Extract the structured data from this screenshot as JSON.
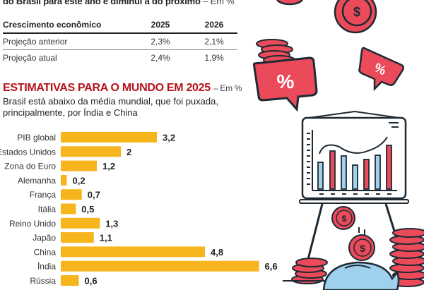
{
  "header": {
    "subtitle": "do Brasil para este ano e diminui a do próximo",
    "subtitle_unit": "– Em %"
  },
  "table": {
    "headers": [
      "Crescimento econômico",
      "2025",
      "2026"
    ],
    "rows": [
      [
        "Projeção anterior",
        "2,3%",
        "2,1%"
      ],
      [
        "Projeção atual",
        "2,4%",
        "1,9%"
      ]
    ]
  },
  "section": {
    "title": "ESTIMATIVAS PARA O MUNDO EM 2025",
    "unit": "– Em %",
    "description": "Brasil está abaixo da média mundial, que foi puxada, principalmente, por Índia e China"
  },
  "chart_data": {
    "type": "bar",
    "orientation": "horizontal",
    "title": "ESTIMATIVAS PARA O MUNDO EM 2025",
    "unit": "%",
    "categories": [
      "PIB global",
      "Estados Unidos",
      "Zona do Euro",
      "Alemanha",
      "França",
      "Itália",
      "Reino Unido",
      "Japão",
      "China",
      "Índia",
      "Rússia"
    ],
    "values": [
      3.2,
      2,
      1.2,
      0.2,
      0.7,
      0.5,
      1.3,
      1.1,
      4.8,
      6.6,
      0.6
    ],
    "value_labels": [
      "3,2",
      "2",
      "1,2",
      "0,2",
      "0,7",
      "0,5",
      "1,3",
      "1,1",
      "4,8",
      "6,6",
      "0,6"
    ],
    "bar_color": "#f7b51d",
    "xlim": [
      0,
      7
    ],
    "grid": false,
    "legend": "none"
  },
  "colors": {
    "accent_red": "#b5121b",
    "illustration_red": "#ea4a5a",
    "illustration_blue": "#9fd0ee",
    "outline": "#1d2a33"
  },
  "illustration": {
    "currency_symbol": "$",
    "percent_symbol": "%"
  }
}
